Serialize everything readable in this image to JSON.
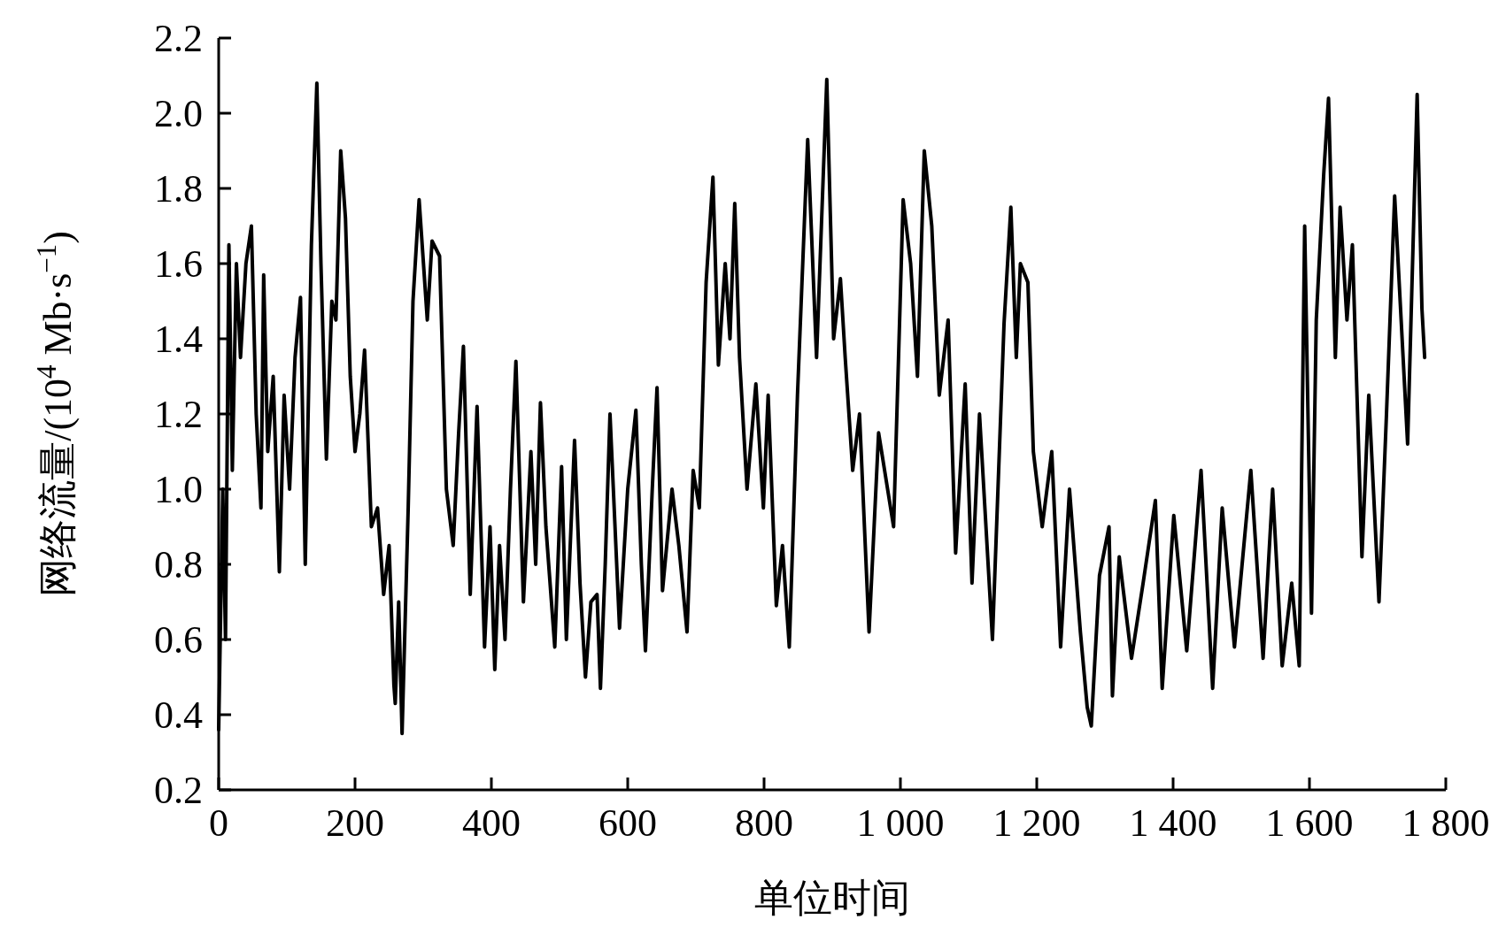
{
  "chart_data": {
    "type": "line",
    "xlabel": "单位时间",
    "ylabel": "网络流量/(10$^{4}$ Mb·s$^{−1}$)",
    "color": "#000000",
    "line_style": "solid",
    "marker": "none",
    "xlim": [
      0,
      1800
    ],
    "ylim": [
      0.2,
      2.2
    ],
    "xticks": [
      0,
      200,
      400,
      600,
      800,
      {
        "value": 1000,
        "label": "1 000"
      },
      {
        "value": 1200,
        "label": "1 200"
      },
      {
        "value": 1400,
        "label": "1 400"
      },
      {
        "value": 1600,
        "label": "1 600"
      },
      {
        "value": 1800,
        "label": "1 800"
      }
    ],
    "yticks": [
      0.2,
      0.4,
      0.6,
      0.8,
      {
        "value": 1,
        "label": "1.0"
      },
      1.2,
      1.4,
      1.6,
      1.8,
      {
        "value": 2,
        "label": "2.0"
      },
      2.2
    ],
    "x": [
      0,
      6,
      10,
      15,
      20,
      26,
      32,
      40,
      48,
      55,
      62,
      66,
      72,
      80,
      89,
      96,
      104,
      112,
      120,
      127,
      136,
      144,
      150,
      158,
      166,
      172,
      179,
      186,
      193,
      200,
      207,
      214,
      224,
      233,
      242,
      250,
      257,
      259,
      264,
      269,
      278,
      285,
      294,
      306,
      313,
      324,
      334,
      344,
      352,
      359,
      369,
      379,
      390,
      398,
      405,
      412,
      420,
      428,
      436,
      447,
      458,
      465,
      472,
      480,
      493,
      503,
      510,
      522,
      530,
      538,
      546,
      555,
      560,
      567,
      574,
      588,
      600,
      612,
      620,
      626,
      636,
      643,
      651,
      665,
      675,
      687,
      696,
      705,
      715,
      725,
      733,
      743,
      750,
      757,
      764,
      775,
      788,
      799,
      806,
      818,
      827,
      837,
      849,
      864,
      877,
      892,
      902,
      912,
      919,
      930,
      940,
      954,
      968,
      990,
      1004,
      1015,
      1025,
      1035,
      1046,
      1057,
      1070,
      1081,
      1095,
      1105,
      1116,
      1135,
      1152,
      1162,
      1170,
      1176,
      1187,
      1195,
      1208,
      1222,
      1235,
      1248,
      1264,
      1274,
      1280,
      1292,
      1306,
      1311,
      1321,
      1339,
      1356,
      1374,
      1384,
      1401,
      1420,
      1441,
      1458,
      1472,
      1490,
      1514,
      1532,
      1546,
      1560,
      1574,
      1585,
      1593,
      1603,
      1610,
      1621,
      1628,
      1638,
      1645,
      1655,
      1663,
      1677,
      1687,
      1702,
      1713,
      1725,
      1744,
      1758,
      1765,
      1769
    ],
    "values": [
      0.36,
      1.0,
      0.6,
      1.65,
      1.05,
      1.6,
      1.35,
      1.6,
      1.7,
      1.2,
      0.95,
      1.57,
      1.1,
      1.3,
      0.78,
      1.25,
      1.0,
      1.35,
      1.51,
      0.8,
      1.65,
      2.08,
      1.6,
      1.08,
      1.5,
      1.45,
      1.9,
      1.72,
      1.3,
      1.1,
      1.2,
      1.37,
      0.9,
      0.95,
      0.72,
      0.85,
      0.48,
      0.43,
      0.7,
      0.35,
      0.95,
      1.5,
      1.77,
      1.45,
      1.66,
      1.62,
      1.0,
      0.85,
      1.15,
      1.38,
      0.72,
      1.22,
      0.58,
      0.9,
      0.52,
      0.85,
      0.6,
      1.0,
      1.34,
      0.7,
      1.1,
      0.8,
      1.23,
      0.9,
      0.58,
      1.06,
      0.6,
      1.13,
      0.75,
      0.5,
      0.7,
      0.72,
      0.47,
      0.8,
      1.2,
      0.63,
      1.0,
      1.21,
      0.8,
      0.57,
      1.0,
      1.27,
      0.73,
      1.0,
      0.85,
      0.62,
      1.05,
      0.95,
      1.55,
      1.83,
      1.33,
      1.6,
      1.4,
      1.76,
      1.35,
      1.0,
      1.28,
      0.95,
      1.25,
      0.69,
      0.85,
      0.58,
      1.25,
      1.93,
      1.35,
      2.09,
      1.4,
      1.56,
      1.35,
      1.05,
      1.2,
      0.62,
      1.15,
      0.9,
      1.77,
      1.6,
      1.3,
      1.9,
      1.7,
      1.25,
      1.45,
      0.83,
      1.28,
      0.75,
      1.2,
      0.6,
      1.44,
      1.75,
      1.35,
      1.6,
      1.55,
      1.1,
      0.9,
      1.1,
      0.58,
      1.0,
      0.62,
      0.42,
      0.37,
      0.77,
      0.9,
      0.45,
      0.82,
      0.55,
      0.75,
      0.97,
      0.47,
      0.93,
      0.57,
      1.05,
      0.47,
      0.95,
      0.58,
      1.05,
      0.55,
      1.0,
      0.53,
      0.75,
      0.53,
      1.7,
      0.67,
      1.45,
      1.84,
      2.04,
      1.35,
      1.75,
      1.45,
      1.65,
      0.82,
      1.25,
      0.7,
      1.2,
      1.78,
      1.12,
      2.05,
      1.48,
      1.35
    ]
  }
}
